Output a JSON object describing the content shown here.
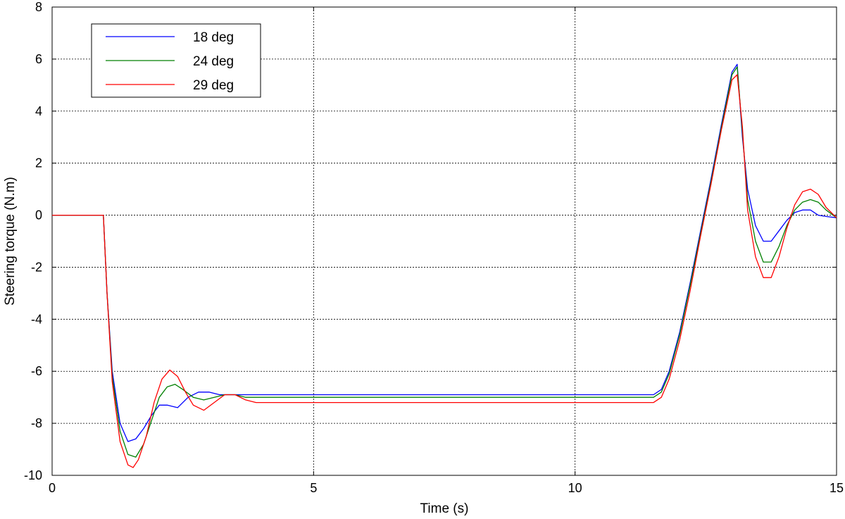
{
  "chart_data": {
    "type": "line",
    "title": "",
    "xlabel": "Time (s)",
    "ylabel": "Steering torque (N.m)",
    "xlim": [
      0,
      15
    ],
    "ylim": [
      -10,
      8
    ],
    "xticks": [
      0,
      5,
      10,
      15
    ],
    "yticks": [
      -10,
      -8,
      -6,
      -4,
      -2,
      0,
      2,
      4,
      6,
      8
    ],
    "grid": true,
    "legend_position": "top-left",
    "series": [
      {
        "name": "18 deg",
        "color": "#0000ff",
        "x": [
          0,
          0.9,
          0.98,
          1.05,
          1.15,
          1.3,
          1.45,
          1.6,
          1.75,
          1.9,
          2.05,
          2.2,
          2.4,
          2.6,
          2.8,
          3.0,
          3.2,
          3.4,
          3.6,
          3.8,
          4.0,
          5.0,
          8.0,
          11.0,
          11.5,
          11.65,
          11.8,
          12.0,
          12.2,
          12.4,
          12.6,
          12.8,
          13.0,
          13.1,
          13.2,
          13.3,
          13.45,
          13.6,
          13.75,
          13.9,
          14.05,
          14.2,
          14.35,
          14.5,
          14.65,
          14.8,
          15.0
        ],
        "y": [
          0,
          0,
          0,
          -3.0,
          -6.0,
          -8.0,
          -8.7,
          -8.6,
          -8.2,
          -7.7,
          -7.3,
          -7.3,
          -7.4,
          -7.0,
          -6.8,
          -6.8,
          -6.9,
          -6.9,
          -6.9,
          -6.9,
          -6.9,
          -6.9,
          -6.9,
          -6.9,
          -6.9,
          -6.7,
          -6.0,
          -4.5,
          -2.6,
          -0.6,
          1.4,
          3.5,
          5.5,
          5.8,
          3.0,
          1.0,
          -0.4,
          -1.0,
          -1.0,
          -0.6,
          -0.2,
          0.1,
          0.2,
          0.2,
          0.0,
          -0.05,
          -0.1
        ]
      },
      {
        "name": "24 deg",
        "color": "#008000",
        "x": [
          0,
          0.9,
          0.98,
          1.05,
          1.15,
          1.3,
          1.45,
          1.6,
          1.75,
          1.9,
          2.05,
          2.2,
          2.35,
          2.5,
          2.7,
          2.9,
          3.1,
          3.3,
          3.5,
          3.7,
          4.0,
          5.0,
          8.0,
          11.0,
          11.5,
          11.65,
          11.8,
          12.0,
          12.2,
          12.4,
          12.6,
          12.8,
          13.0,
          13.1,
          13.2,
          13.3,
          13.45,
          13.6,
          13.75,
          13.9,
          14.05,
          14.2,
          14.35,
          14.5,
          14.65,
          14.8,
          15.0
        ],
        "y": [
          0,
          0,
          0,
          -3.0,
          -6.2,
          -8.3,
          -9.2,
          -9.3,
          -8.8,
          -7.9,
          -7.0,
          -6.6,
          -6.5,
          -6.7,
          -7.0,
          -7.1,
          -7.0,
          -6.9,
          -6.9,
          -7.0,
          -7.0,
          -7.0,
          -7.0,
          -7.0,
          -7.0,
          -6.8,
          -6.1,
          -4.6,
          -2.7,
          -0.7,
          1.3,
          3.4,
          5.4,
          5.7,
          3.2,
          0.6,
          -1.0,
          -1.8,
          -1.8,
          -1.2,
          -0.4,
          0.2,
          0.5,
          0.6,
          0.5,
          0.2,
          -0.1
        ]
      },
      {
        "name": "29 deg",
        "color": "#ff0000",
        "x": [
          0,
          0.9,
          0.98,
          1.05,
          1.15,
          1.3,
          1.45,
          1.55,
          1.65,
          1.8,
          1.95,
          2.1,
          2.25,
          2.4,
          2.55,
          2.7,
          2.9,
          3.1,
          3.3,
          3.5,
          3.7,
          3.9,
          4.2,
          5.0,
          8.0,
          11.0,
          11.5,
          11.65,
          11.8,
          12.0,
          12.2,
          12.4,
          12.6,
          12.8,
          13.0,
          13.1,
          13.2,
          13.3,
          13.45,
          13.6,
          13.75,
          13.9,
          14.05,
          14.2,
          14.35,
          14.5,
          14.65,
          14.8,
          15.0
        ],
        "y": [
          0,
          0,
          0,
          -3.0,
          -6.4,
          -8.7,
          -9.6,
          -9.7,
          -9.4,
          -8.5,
          -7.2,
          -6.3,
          -5.95,
          -6.2,
          -6.8,
          -7.3,
          -7.5,
          -7.2,
          -6.9,
          -6.9,
          -7.1,
          -7.2,
          -7.2,
          -7.2,
          -7.2,
          -7.2,
          -7.2,
          -7.0,
          -6.3,
          -4.8,
          -2.9,
          -0.8,
          1.2,
          3.3,
          5.2,
          5.4,
          3.4,
          0.2,
          -1.6,
          -2.4,
          -2.4,
          -1.6,
          -0.5,
          0.4,
          0.9,
          1.0,
          0.8,
          0.3,
          -0.1
        ]
      }
    ]
  }
}
